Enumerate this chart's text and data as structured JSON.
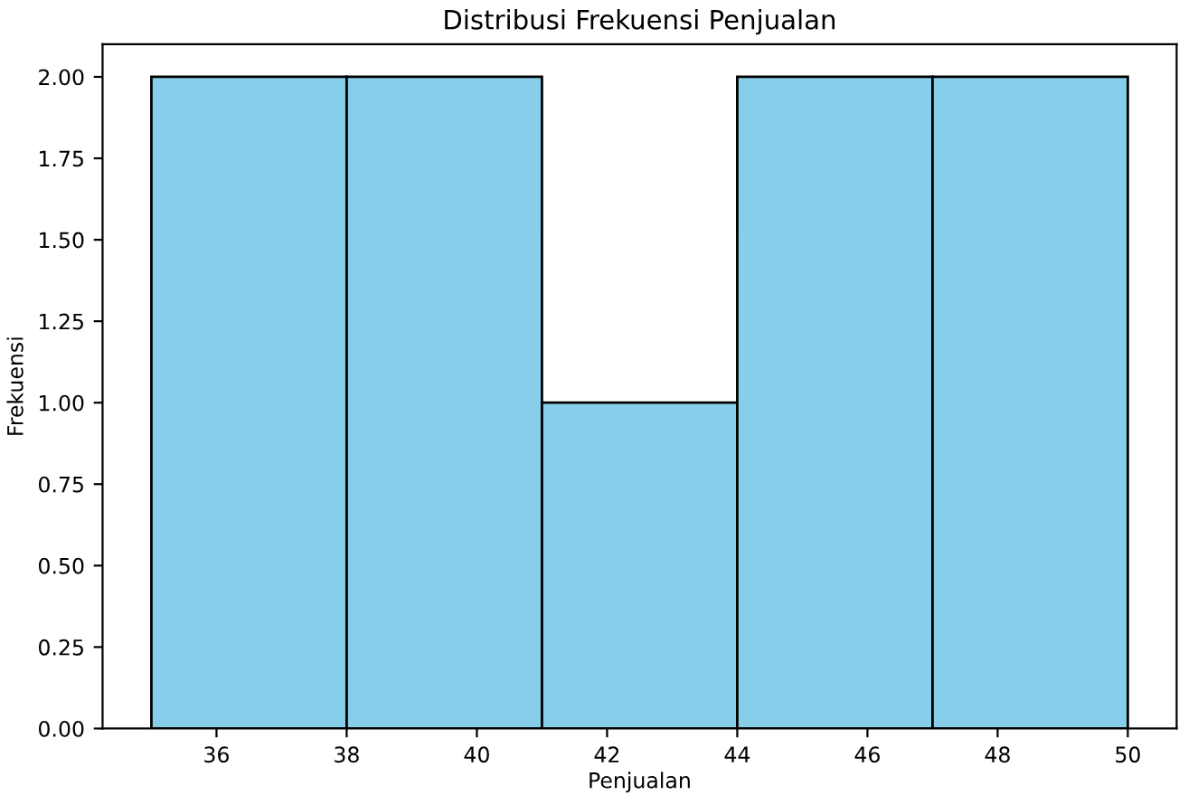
{
  "chart_data": {
    "type": "histogram",
    "title": "Distribusi Frekuensi Penjualan",
    "xlabel": "Penjualan",
    "ylabel": "Frekuensi",
    "bins": [
      35,
      38,
      41,
      44,
      47,
      50
    ],
    "values": [
      2,
      2,
      1,
      2,
      2
    ],
    "color": "#87ceeb",
    "xlim": [
      34.25,
      50.75
    ],
    "xticks": [
      36,
      38,
      40,
      42,
      44,
      46,
      48,
      50
    ],
    "ylim": [
      0,
      2.1
    ],
    "yticks": [
      {
        "value": 0,
        "label": "0.00"
      },
      {
        "value": 0.25,
        "label": "0.25"
      },
      {
        "value": 0.5,
        "label": "0.50"
      },
      {
        "value": 0.75,
        "label": "0.75"
      },
      {
        "value": 1,
        "label": "1.00"
      },
      {
        "value": 1.25,
        "label": "1.25"
      },
      {
        "value": 1.5,
        "label": "1.50"
      },
      {
        "value": 1.75,
        "label": "1.75"
      },
      {
        "value": 2,
        "label": "2.00"
      }
    ],
    "grid": false,
    "legend": false
  }
}
